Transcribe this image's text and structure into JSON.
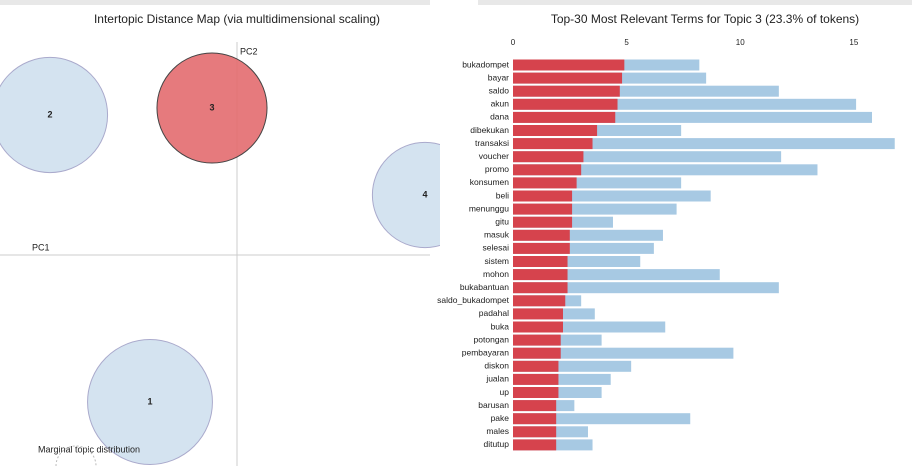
{
  "chart_data": [
    {
      "type": "scatter",
      "title": "Intertopic Distance Map (via multidimensional scaling)",
      "xlabel": "PC1",
      "ylabel": "PC2",
      "labels": [
        "1",
        "2",
        "3",
        "4"
      ],
      "x": [
        -0.174,
        -0.374,
        -0.05,
        0.376
      ],
      "y": [
        -0.294,
        0.28,
        0.294,
        0.12
      ],
      "size": [
        30.0,
        25.5,
        23.3,
        21.3
      ],
      "colors": [
        "#cfe0ee",
        "#cfe0ee",
        "#e36b6f",
        "#cfe0ee"
      ],
      "xlim": [
        -0.474,
        0.39
      ],
      "ylim": [
        -0.422,
        0.45
      ],
      "annotation": "Marginal topic distribution"
    },
    {
      "type": "bar",
      "orientation": "horizontal",
      "title": "Top-30 Most Relevant Terms for Topic 3 (23.3% of tokens)",
      "categories": [
        "bukadompet",
        "bayar",
        "saldo",
        "akun",
        "dana",
        "dibekukan",
        "transaksi",
        "voucher",
        "promo",
        "konsumen",
        "beli",
        "menunggu",
        "gitu",
        "masuk",
        "selesai",
        "sistem",
        "mohon",
        "bukabantuan",
        "saldo_bukadompet",
        "padahal",
        "buka",
        "potongan",
        "pembayaran",
        "diskon",
        "jualan",
        "up",
        "barusan",
        "pake",
        "males",
        "ditutup"
      ],
      "series": [
        {
          "color": "#a7c9e3",
          "values": [
            8.2,
            8.5,
            11.7,
            15.1,
            15.8,
            7.4,
            16.8,
            11.8,
            13.4,
            7.4,
            8.7,
            7.2,
            4.4,
            6.6,
            6.2,
            5.6,
            9.1,
            11.7,
            3.0,
            3.6,
            6.7,
            3.9,
            9.7,
            5.2,
            4.3,
            3.9,
            2.7,
            7.8,
            3.3,
            3.5
          ]
        },
        {
          "color": "#d6434d",
          "values": [
            4.9,
            4.8,
            4.7,
            4.6,
            4.5,
            3.7,
            3.5,
            3.1,
            3.0,
            2.8,
            2.6,
            2.6,
            2.6,
            2.5,
            2.5,
            2.4,
            2.4,
            2.4,
            2.3,
            2.2,
            2.2,
            2.1,
            2.1,
            2.0,
            2.0,
            2.0,
            1.9,
            1.9,
            1.9,
            1.9
          ]
        }
      ],
      "xlim": [
        0,
        16.9
      ],
      "xticks": [
        0,
        5,
        10,
        15
      ]
    }
  ]
}
